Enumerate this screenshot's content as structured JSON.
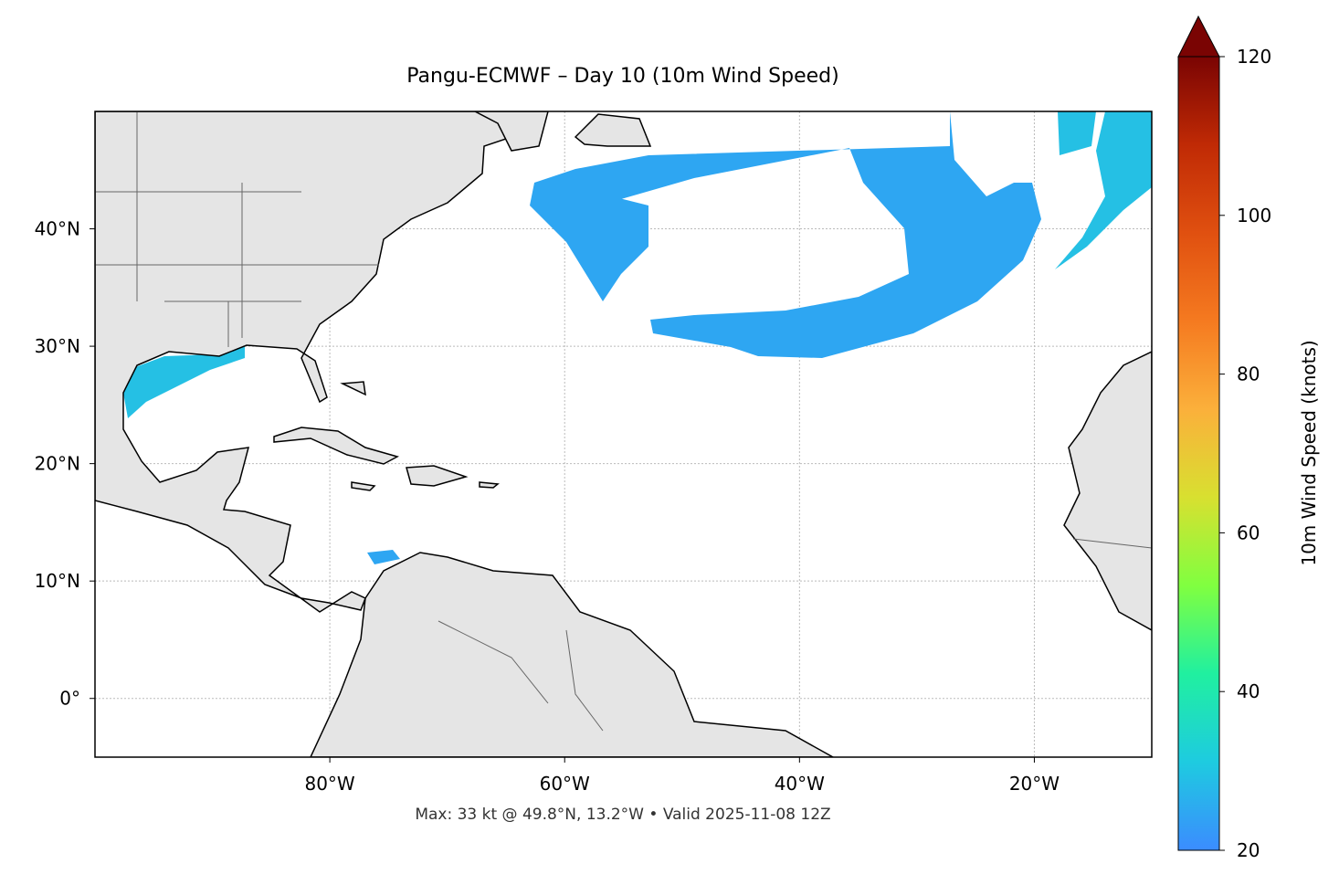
{
  "title": "Pangu-ECMWF – Day 10 (10m Wind Speed)",
  "map": {
    "xlim": [
      -100,
      -10
    ],
    "ylim": [
      -5,
      50
    ],
    "xticks": [
      {
        "value": -80,
        "label": "80°W"
      },
      {
        "value": -60,
        "label": "60°W"
      },
      {
        "value": -40,
        "label": "40°W"
      },
      {
        "value": -20,
        "label": "20°W"
      }
    ],
    "yticks": [
      {
        "value": 0,
        "label": "0°"
      },
      {
        "value": 10,
        "label": "10°N"
      },
      {
        "value": 20,
        "label": "20°N"
      },
      {
        "value": 30,
        "label": "30°N"
      },
      {
        "value": 40,
        "label": "40°N"
      }
    ],
    "grid": true
  },
  "colorbar": {
    "label": "10m Wind Speed (knots)",
    "lim": [
      20,
      120
    ],
    "ticks": [
      20,
      40,
      60,
      80,
      100,
      120
    ],
    "colors": [
      "#3b8cff",
      "#1ecbe0",
      "#20f0a0",
      "#80ff40",
      "#d8e030",
      "#fbb03b",
      "#f57a20",
      "#e05010",
      "#c02a05",
      "#7a0403"
    ]
  },
  "footer": "Max: 33 kt @ 49.8°N, 13.2°W • Valid 2025-11-08 12Z"
}
